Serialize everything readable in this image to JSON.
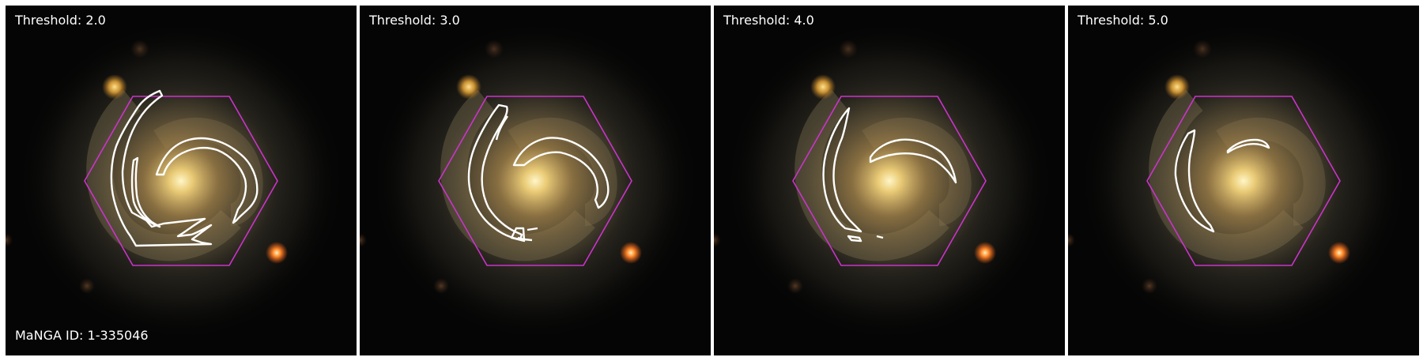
{
  "figure": {
    "galaxy_id_label": "MaNGA ID: 1-335046",
    "panels": [
      {
        "threshold_label": "Threshold: 2.0",
        "threshold": 2.0
      },
      {
        "threshold_label": "Threshold: 3.0",
        "threshold": 3.0
      },
      {
        "threshold_label": "Threshold: 4.0",
        "threshold": 4.0
      },
      {
        "threshold_label": "Threshold: 5.0",
        "threshold": 5.0
      }
    ],
    "colors": {
      "hexagon_outline": "#cc33cc",
      "contour": "#ffffff",
      "background": "#050505",
      "galaxy_core": "#fff0b0",
      "galaxy_disk": "#8a7a50",
      "foreground_star": "#ff7a20",
      "companion_source": "#d9a040"
    }
  }
}
